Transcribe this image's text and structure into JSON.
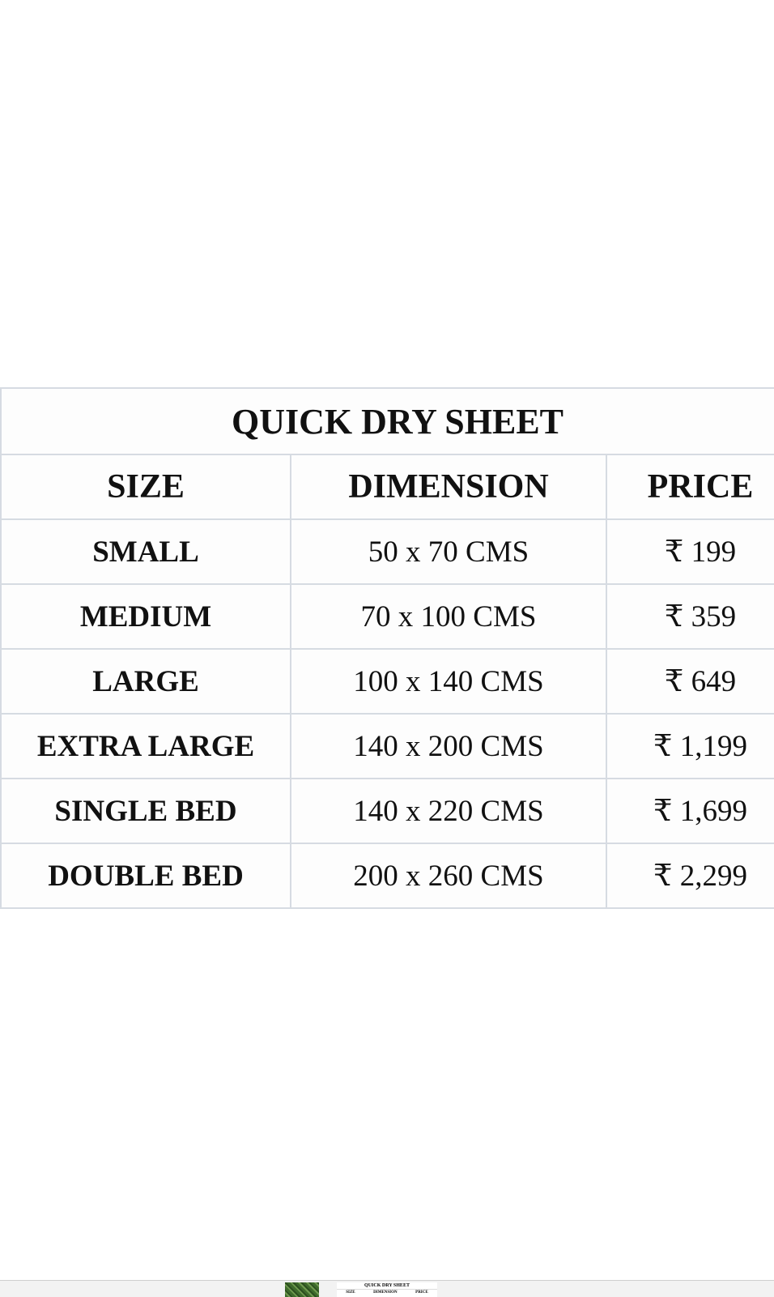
{
  "table": {
    "title": "QUICK DRY SHEET",
    "headers": [
      "SIZE",
      "DIMENSION",
      "PRICE"
    ],
    "rows": [
      {
        "size": "SMALL",
        "dimension": "50 x 70 CMS",
        "price": "₹ 199"
      },
      {
        "size": "MEDIUM",
        "dimension": "70 x 100 CMS",
        "price": "₹ 359"
      },
      {
        "size": "LARGE",
        "dimension": "100 x 140 CMS",
        "price": "₹ 649"
      },
      {
        "size": "EXTRA LARGE",
        "dimension": "140 x 200 CMS",
        "price": "₹ 1,199"
      },
      {
        "size": "SINGLE BED",
        "dimension": "140 x 220 CMS",
        "price": "₹ 1,699"
      },
      {
        "size": "DOUBLE BED",
        "dimension": "200 x 260 CMS",
        "price": "₹ 2,299"
      }
    ]
  },
  "thumbnails": {
    "table_thumb": {
      "title": "QUICK DRY SHEET",
      "headers": [
        "SIZE",
        "DIMENSION",
        "PRICE"
      ]
    }
  }
}
